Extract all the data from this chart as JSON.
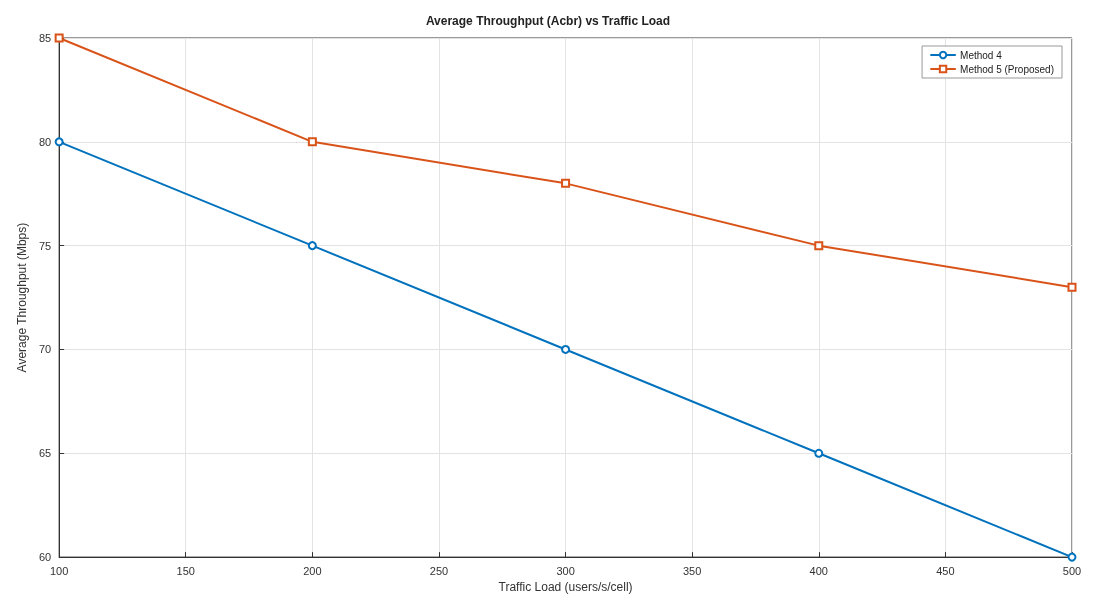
{
  "chart_data": {
    "type": "line",
    "title": "Average Throughput (Acbr) vs Traffic Load",
    "xlabel": "Traffic Load (users/s/cell)",
    "ylabel": "Average Throughput (Mbps)",
    "x": [
      100,
      200,
      300,
      400,
      500
    ],
    "series": [
      {
        "name": "Method 4",
        "color": "#0072bd",
        "marker": "circle",
        "values": [
          80,
          75,
          70,
          65,
          60
        ]
      },
      {
        "name": "Method 5 (Proposed)",
        "color": "#d95319",
        "marker": "square",
        "values": [
          85,
          80,
          78,
          75,
          73
        ]
      }
    ],
    "xlim": [
      100,
      500
    ],
    "xticks": [
      100,
      150,
      200,
      250,
      300,
      350,
      400,
      450,
      500
    ],
    "ylim": [
      60,
      85
    ],
    "yticks": [
      60,
      65,
      70,
      75,
      80,
      85
    ],
    "grid": true,
    "legend": "top right",
    "line_style": "solid"
  }
}
